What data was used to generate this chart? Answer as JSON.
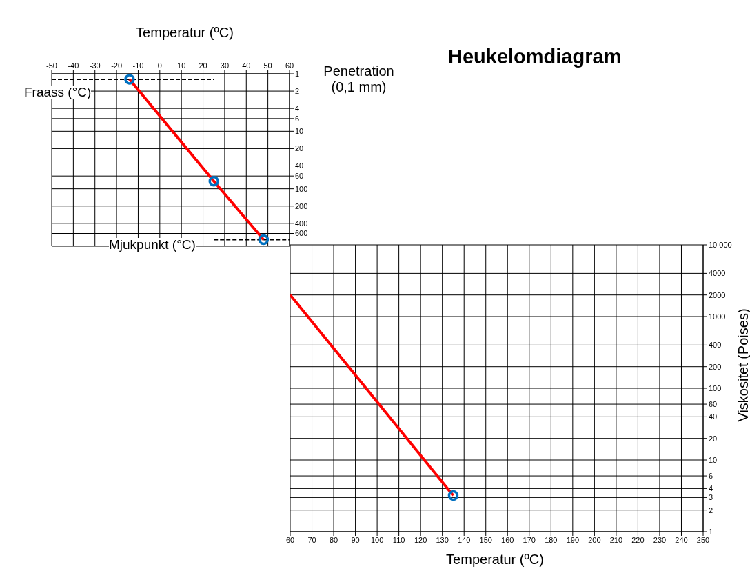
{
  "chart_data": [
    {
      "type": "line",
      "xlabel": "Temperatur (ºC)",
      "ylabel": "Penetration (0,1 mm)",
      "x": [
        -14,
        25,
        48
      ],
      "series": [
        {
          "color": "#ff0000",
          "marker": "none",
          "values": [
            1.25,
            74,
            770
          ]
        },
        {
          "type": "scatter",
          "color": "#0070c0",
          "marker": "circle",
          "values": [
            1.25,
            74,
            770
          ]
        }
      ],
      "xlim": [
        -50,
        60
      ],
      "xticks": [
        -50,
        -40,
        -30,
        -20,
        -10,
        0,
        10,
        20,
        30,
        40,
        50,
        60
      ],
      "ylim": [
        1000,
        1
      ],
      "yticks": [
        1,
        2,
        4,
        6,
        10,
        20,
        40,
        60,
        100,
        200,
        400,
        600
      ],
      "log": "y",
      "grid": true,
      "ref_lines": [
        {
          "axis": "y",
          "value": 1.25,
          "label": "Fraass (°C)",
          "line_style": "dashed",
          "color": "#000000"
        },
        {
          "axis": "y",
          "value": 770,
          "label": "Mjukpunkt (°C)",
          "line_style": "dashed",
          "color": "#000000"
        }
      ]
    },
    {
      "type": "line",
      "title": "Heukelomdiagram",
      "xlabel": "Temperatur (ºC)",
      "ylabel": "Viskositet (Poises)",
      "x": [
        60,
        135
      ],
      "series": [
        {
          "color": "#ff0000",
          "marker": "none",
          "values": [
            2000,
            3.2
          ]
        },
        {
          "type": "scatter",
          "color": "#0070c0",
          "marker": "circle",
          "x": [
            135
          ],
          "values": [
            3.2
          ]
        }
      ],
      "xlim": [
        60,
        250
      ],
      "xticks": [
        60,
        70,
        80,
        90,
        100,
        110,
        120,
        130,
        140,
        150,
        160,
        170,
        180,
        190,
        200,
        210,
        220,
        230,
        240,
        250
      ],
      "ylim": [
        1,
        10000
      ],
      "yticks": [
        1,
        2,
        3,
        4,
        6,
        10,
        20,
        40,
        60,
        100,
        200,
        400,
        1000,
        2000,
        4000,
        {
          "value": 10000,
          "label": "10 000"
        }
      ],
      "log": "y",
      "grid": true
    }
  ]
}
